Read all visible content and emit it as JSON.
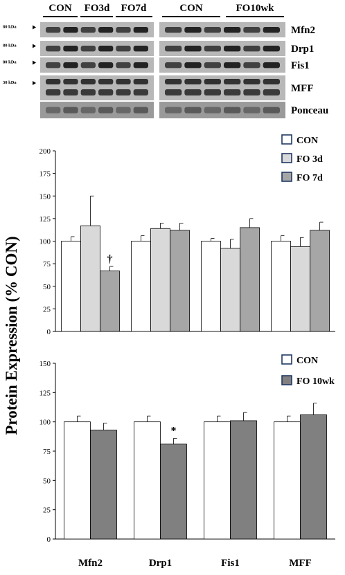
{
  "blot": {
    "left_groups": [
      "CON",
      "FO3d",
      "FO7d"
    ],
    "right_groups": [
      "CON",
      "FO10wk"
    ],
    "rows": [
      {
        "name": "Mfn2",
        "kda": "80 kDa"
      },
      {
        "name": "Drp1",
        "kda": "80 kDa"
      },
      {
        "name": "Fis1",
        "kda": "80 kDa"
      },
      {
        "name": "MFF",
        "kda": "30 kDa"
      },
      {
        "name": "Ponceau",
        "kda": ""
      }
    ]
  },
  "ylabel": "Protein Expression (% CON)",
  "chart_data": [
    {
      "type": "bar",
      "categories": [
        "Mfn2",
        "Drp1",
        "Fis1",
        "MFF"
      ],
      "ylim": [
        0,
        200
      ],
      "yticks": [
        0,
        25,
        50,
        75,
        100,
        125,
        150,
        175,
        200
      ],
      "legend_position": "top-right",
      "series": [
        {
          "name": "CON",
          "values": [
            100,
            100,
            100,
            100
          ],
          "errors": [
            5,
            6,
            3,
            6
          ],
          "color": "#ffffff"
        },
        {
          "name": "FO 3d",
          "values": [
            117,
            114,
            92,
            94
          ],
          "errors": [
            33,
            6,
            10,
            10
          ],
          "color": "#d9d9d9"
        },
        {
          "name": "FO 7d",
          "values": [
            67,
            112,
            115,
            112
          ],
          "errors": [
            5,
            8,
            10,
            9
          ],
          "color": "#a6a6a6"
        }
      ],
      "annotations": [
        {
          "category": "Mfn2",
          "series": "FO 7d",
          "text": "†"
        }
      ]
    },
    {
      "type": "bar",
      "categories": [
        "Mfn2",
        "Drp1",
        "Fis1",
        "MFF"
      ],
      "ylim": [
        0,
        150
      ],
      "yticks": [
        0,
        25,
        50,
        75,
        100,
        125,
        150
      ],
      "legend_position": "top-right",
      "series": [
        {
          "name": "CON",
          "values": [
            100,
            100,
            100,
            100
          ],
          "errors": [
            5,
            5,
            5,
            5
          ],
          "color": "#ffffff"
        },
        {
          "name": "FO 10wk",
          "values": [
            93,
            81,
            101,
            106
          ],
          "errors": [
            6,
            5,
            7,
            10
          ],
          "color": "#808080"
        }
      ],
      "annotations": [
        {
          "category": "Drp1",
          "series": "FO 10wk",
          "text": "*"
        }
      ]
    }
  ]
}
